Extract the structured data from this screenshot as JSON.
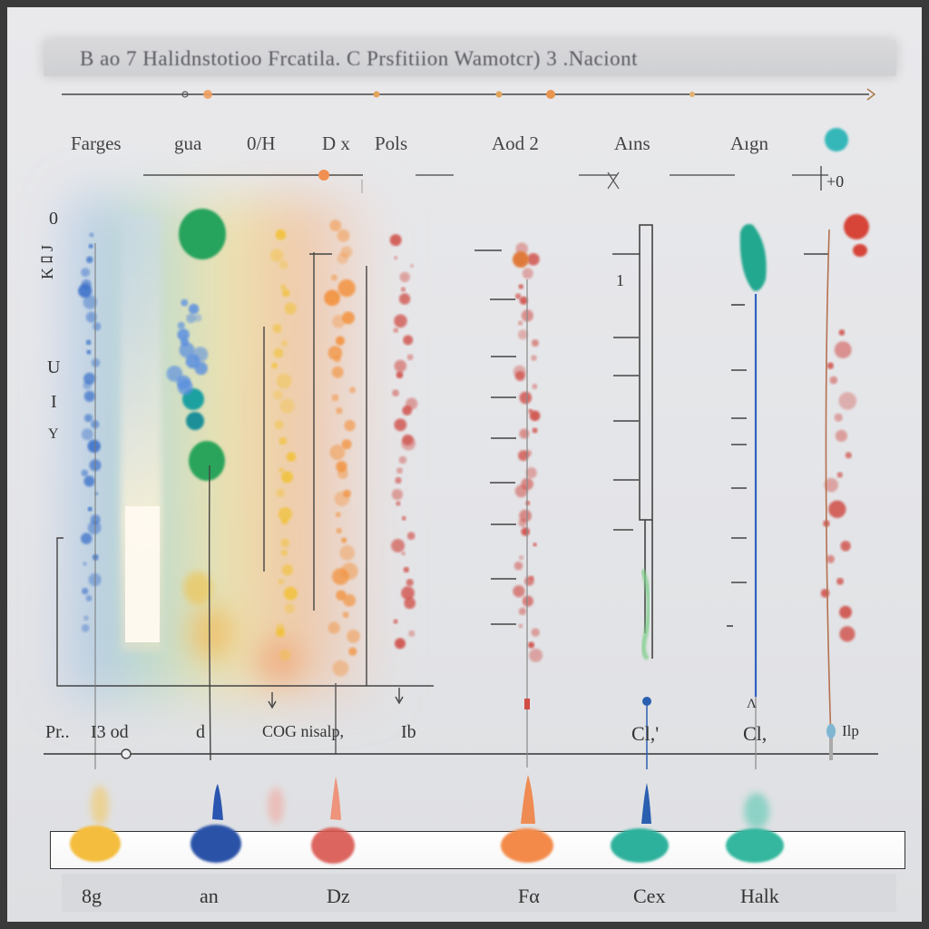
{
  "title": "B ao 7   Halidnstotioo Frcatila. C   Prsfitiion   Wamotcr)  3  .Naciont",
  "header_labels": [
    "Farges",
    "gua",
    "0/H",
    "D x",
    "Pols",
    "Aod 2",
    "Aıns",
    "Aıgn"
  ],
  "axis_labels": [
    "0",
    "K ﾛ J",
    "U",
    "I",
    "Y",
    "1",
    "+0",
    "Ʌ"
  ],
  "middle_labels": [
    "Pr..",
    "I3 od",
    "d",
    "COG nisalp,",
    "Ib",
    "Cl,'",
    "Cl,",
    "Ilp"
  ],
  "bottom_labels": [
    "8g",
    "an",
    "Dz",
    "Fα",
    "Cex",
    "Halk"
  ],
  "colors": {
    "blue": "#3b6fc9",
    "green": "#27a35a",
    "yellow": "#f2c23a",
    "orange": "#f3923e",
    "red": "#cf4a42",
    "teal": "#2fb3a0",
    "line": "#444444"
  }
}
